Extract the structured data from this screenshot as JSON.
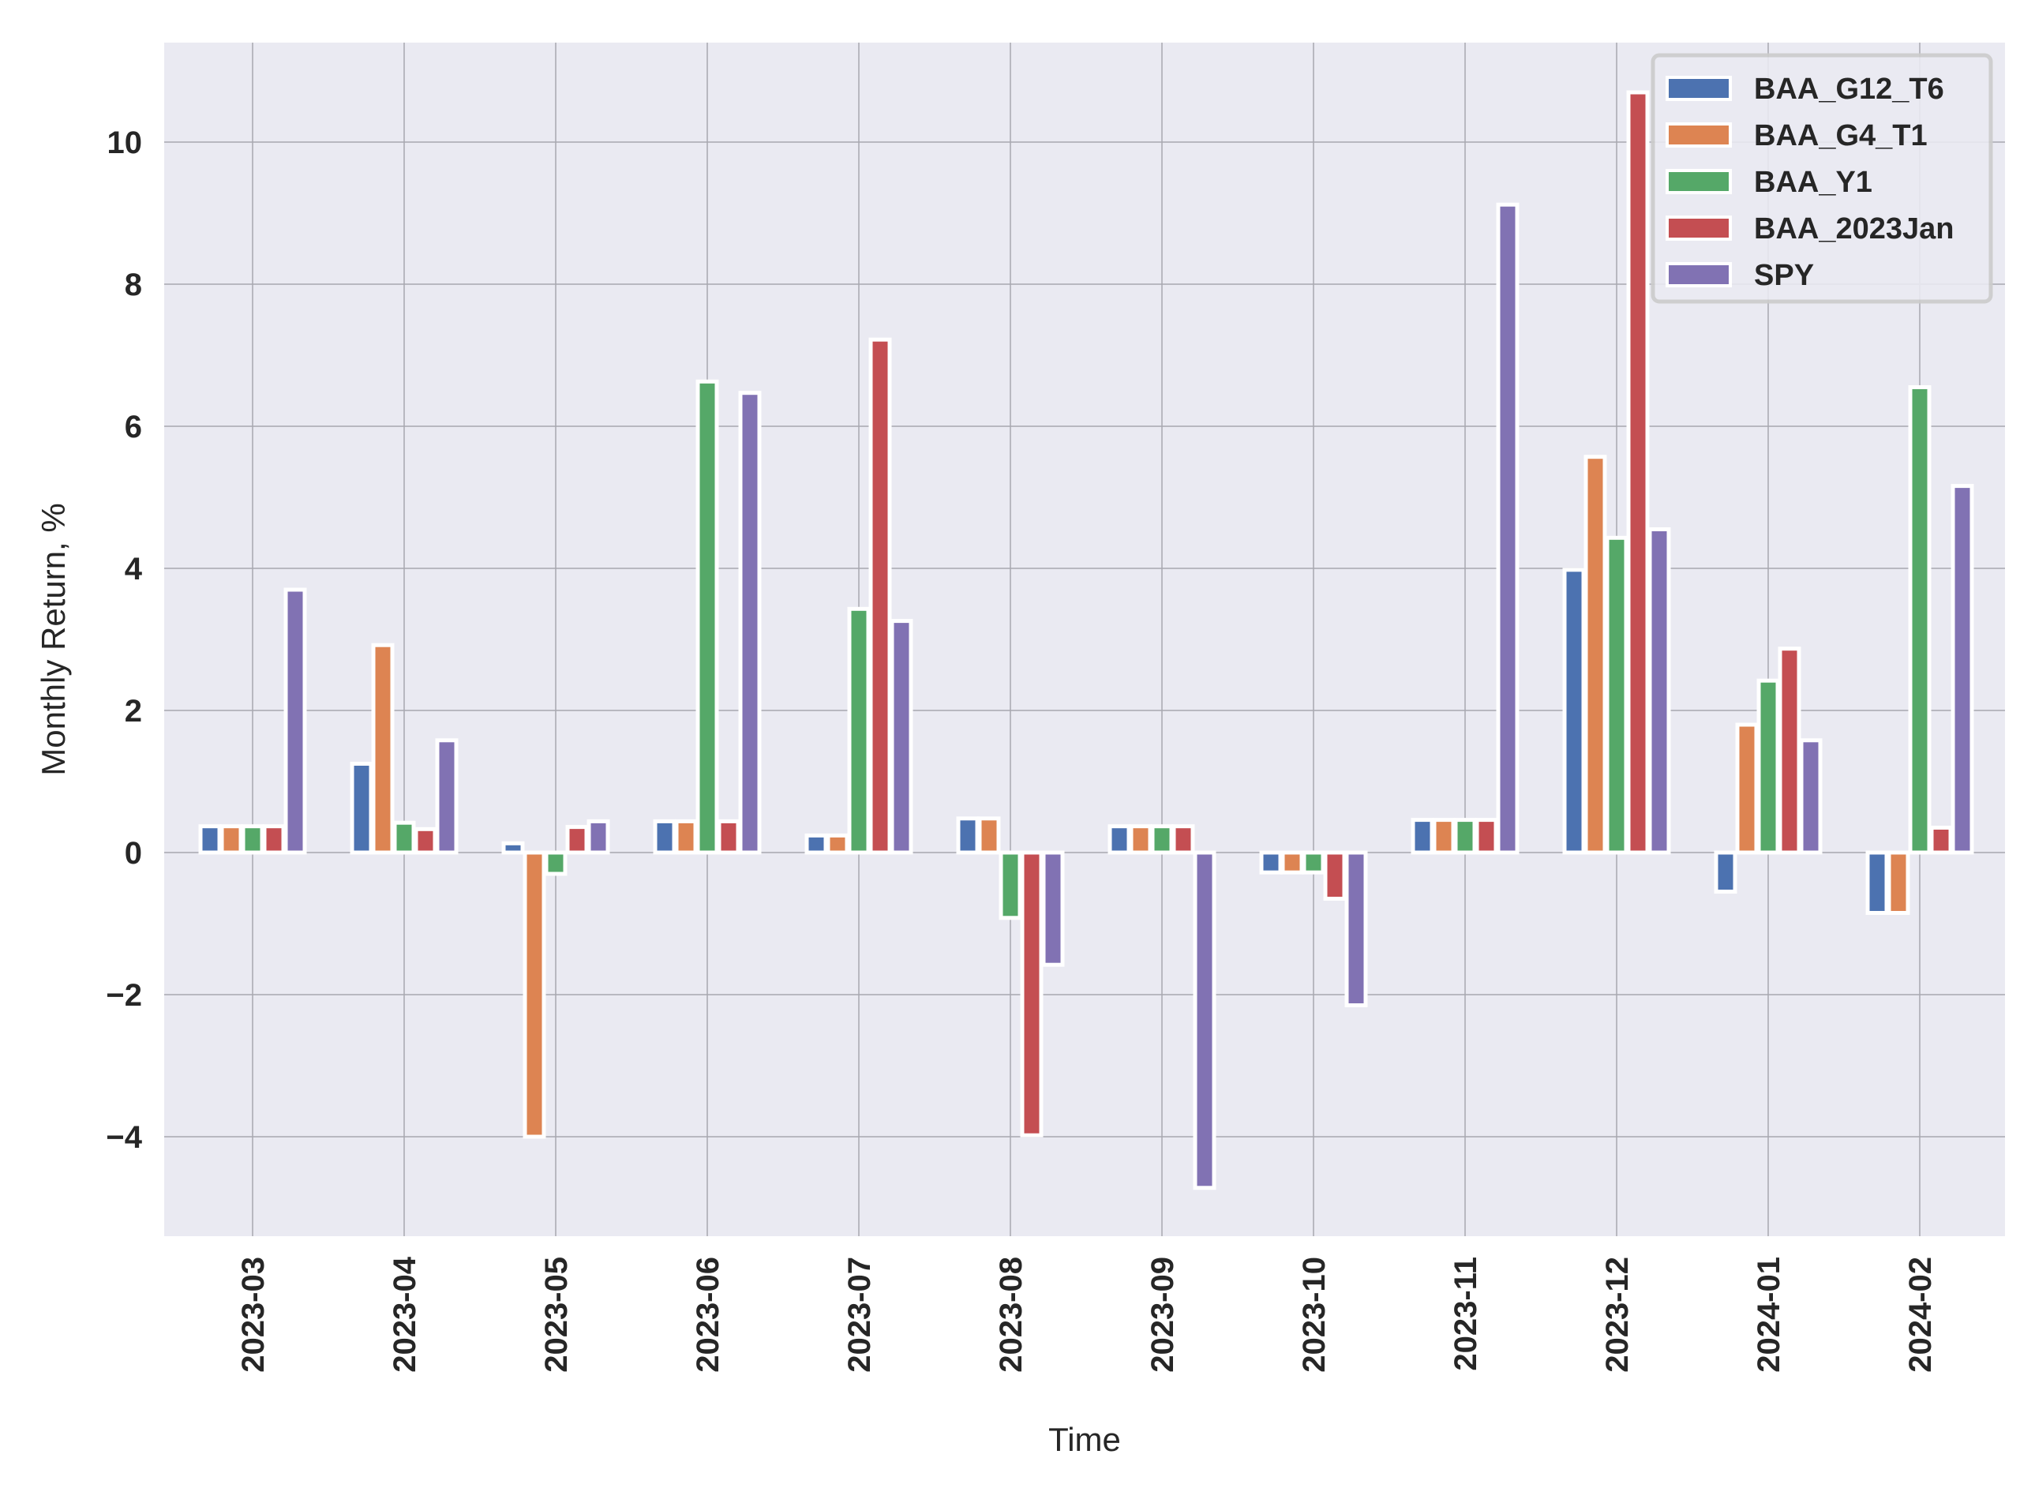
{
  "chart_data": {
    "type": "bar",
    "xlabel": "Time",
    "ylabel": "Monthly Return, %",
    "ylim": [
      -5.4,
      11.4
    ],
    "yticks": [
      -4,
      -2,
      0,
      2,
      4,
      6,
      8,
      10
    ],
    "grid": true,
    "legend_position": "top-right",
    "categories": [
      "2023-03",
      "2023-04",
      "2023-05",
      "2023-06",
      "2023-07",
      "2023-08",
      "2023-09",
      "2023-10",
      "2023-11",
      "2023-12",
      "2024-01",
      "2024-02"
    ],
    "series": [
      {
        "name": "BAA_G12_T6",
        "color": "#4c72b0",
        "values": [
          0.37,
          1.25,
          0.13,
          0.44,
          0.24,
          0.48,
          0.37,
          -0.28,
          0.46,
          3.98,
          -0.55,
          -0.85
        ]
      },
      {
        "name": "BAA_G4_T1",
        "color": "#dd8452",
        "values": [
          0.37,
          2.92,
          -4.0,
          0.44,
          0.24,
          0.48,
          0.37,
          -0.28,
          0.46,
          5.57,
          1.8,
          -0.85
        ]
      },
      {
        "name": "BAA_Y1",
        "color": "#55a868",
        "values": [
          0.37,
          0.42,
          -0.3,
          6.63,
          3.43,
          -0.92,
          0.37,
          -0.28,
          0.46,
          4.43,
          2.42,
          6.55
        ]
      },
      {
        "name": "BAA_2023Jan",
        "color": "#c44e52",
        "values": [
          0.37,
          0.33,
          0.36,
          0.44,
          7.22,
          -3.98,
          0.37,
          -0.65,
          0.46,
          10.7,
          2.87,
          0.35
        ]
      },
      {
        "name": "SPY",
        "color": "#8172b3",
        "values": [
          3.7,
          1.58,
          0.44,
          6.47,
          3.26,
          -1.58,
          -4.72,
          -2.15,
          9.12,
          4.55,
          1.58,
          5.16
        ]
      }
    ]
  }
}
